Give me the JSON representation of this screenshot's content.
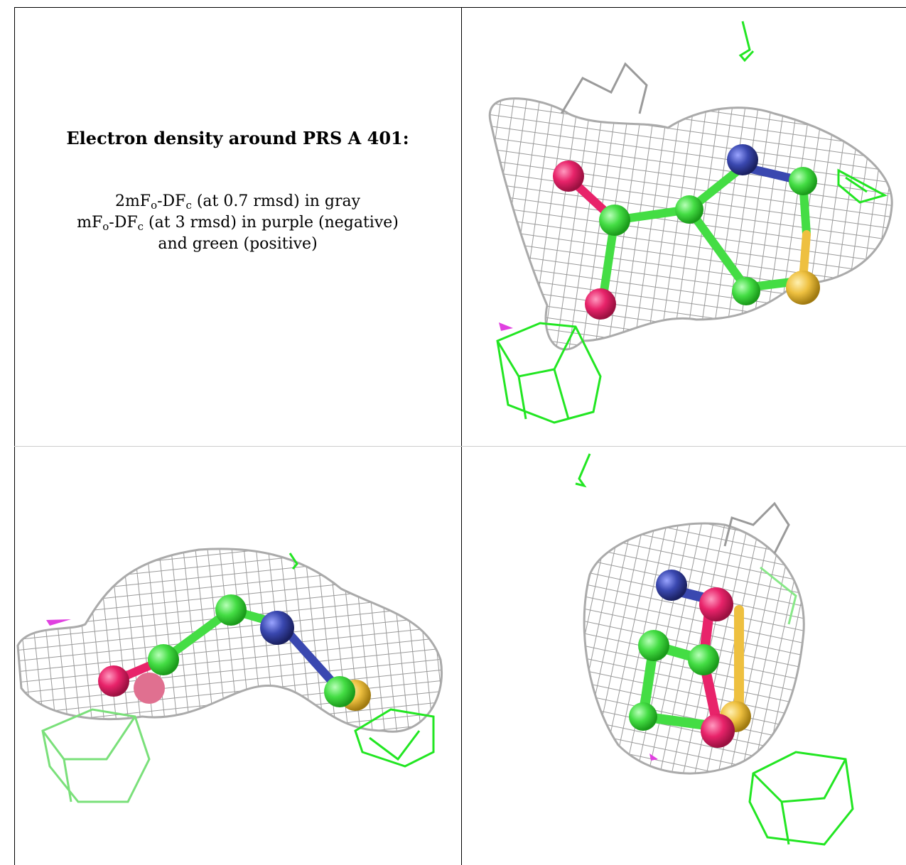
{
  "caption": {
    "title": "Electron density around PRS A 401:",
    "line1": {
      "a": "2mF",
      "b": "o",
      "c": "-DF",
      "d": "c",
      "e": " (at 0.7 rmsd) in gray"
    },
    "line2": {
      "a": "mF",
      "b": "o",
      "c": "-DF",
      "d": "c",
      "e": " (at 3 rmsd) in purple (negative)"
    },
    "line3": "and green (positive)"
  },
  "colors": {
    "mesh_gray": "#a8a8a8",
    "positive_green": "#22e622",
    "negative_purple": "#e040e0",
    "carbon": "#44dd44",
    "oxygen": "#e8236a",
    "nitrogen": "#3a48b0",
    "sulfur": "#eec040"
  },
  "panels": [
    {
      "name": "view-1",
      "icon": "molecule-density-render"
    },
    {
      "name": "view-2",
      "icon": "molecule-density-render"
    },
    {
      "name": "view-3",
      "icon": "molecule-density-render"
    }
  ]
}
